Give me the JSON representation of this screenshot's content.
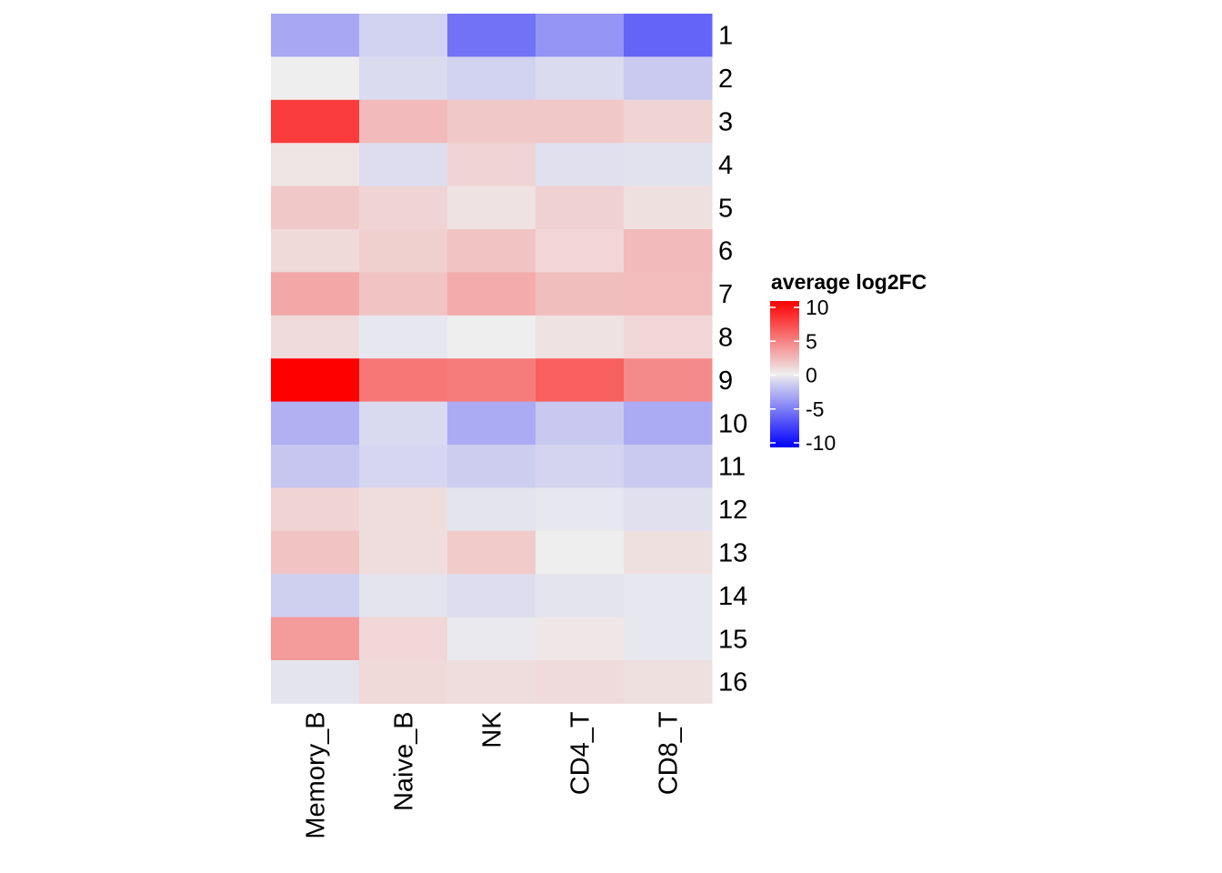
{
  "chart_data": {
    "type": "heatmap",
    "title": "",
    "xlabel": "",
    "ylabel": "",
    "columns": [
      "Memory_B",
      "Naive_B",
      "NK",
      "CD4_T",
      "CD8_T"
    ],
    "rows": [
      "1",
      "2",
      "3",
      "4",
      "5",
      "6",
      "7",
      "8",
      "9",
      "10",
      "11",
      "12",
      "13",
      "14",
      "15",
      "16"
    ],
    "values": [
      [
        -3.0,
        -1.2,
        -5.2,
        -3.8,
        -5.8
      ],
      [
        0.0,
        -0.8,
        -1.2,
        -0.8,
        -1.5
      ],
      [
        7.5,
        2.2,
        1.6,
        1.6,
        1.1
      ],
      [
        0.4,
        -0.7,
        1.1,
        -0.6,
        -0.5
      ],
      [
        1.6,
        1.1,
        0.5,
        1.2,
        0.6
      ],
      [
        0.9,
        1.3,
        1.8,
        1.0,
        2.2
      ],
      [
        3.0,
        1.8,
        2.8,
        2.0,
        2.1
      ],
      [
        0.8,
        -0.3,
        0.0,
        0.5,
        1.0
      ],
      [
        10.0,
        5.0,
        4.8,
        6.0,
        4.2
      ],
      [
        -2.6,
        -0.9,
        -2.8,
        -1.6,
        -2.8
      ],
      [
        -1.7,
        -1.0,
        -1.4,
        -1.1,
        -1.5
      ],
      [
        1.1,
        0.7,
        -0.4,
        -0.3,
        -0.6
      ],
      [
        1.8,
        0.7,
        1.5,
        0.0,
        0.6
      ],
      [
        -1.3,
        -0.4,
        -0.7,
        -0.4,
        -0.3
      ],
      [
        3.5,
        1.0,
        -0.2,
        0.3,
        -0.3
      ],
      [
        -0.4,
        0.9,
        0.7,
        0.8,
        0.6
      ]
    ],
    "color_scale": {
      "low": "#0000ff",
      "mid": "#eeeeee",
      "high": "#ff0000",
      "range": [
        -10,
        10
      ]
    },
    "legend": {
      "title": "average log2FC",
      "ticks": [
        "10",
        "5",
        "0",
        "-5",
        "-10"
      ],
      "tick_values": [
        10,
        5,
        0,
        -5,
        -10
      ],
      "position": "right"
    }
  }
}
